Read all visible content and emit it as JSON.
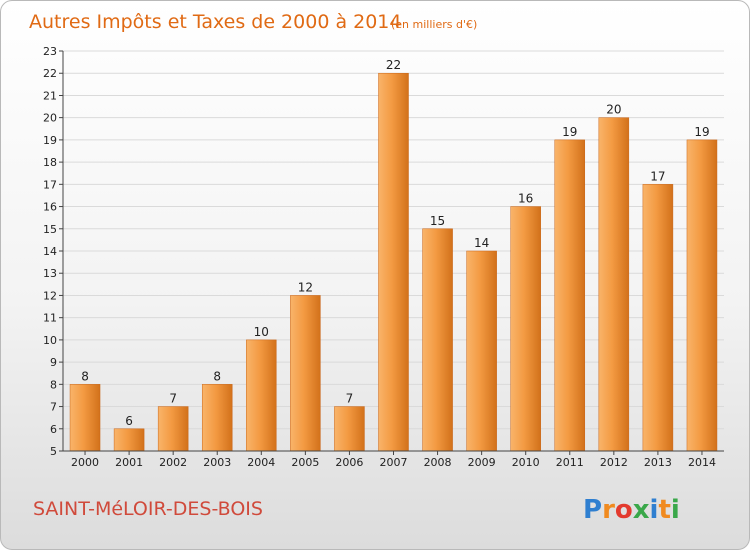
{
  "chart_data": {
    "type": "bar",
    "title": "Autres Impôts et Taxes de 2000 à 2014",
    "subtitle": "(en milliers d'€)",
    "categories": [
      "2000",
      "2001",
      "2002",
      "2003",
      "2004",
      "2005",
      "2006",
      "2007",
      "2008",
      "2009",
      "2010",
      "2011",
      "2012",
      "2013",
      "2014"
    ],
    "values": [
      8,
      6,
      7,
      8,
      10,
      12,
      7,
      22,
      15,
      14,
      16,
      19,
      20,
      17,
      19
    ],
    "ylim": [
      5,
      23
    ],
    "yticks": [
      5,
      6,
      7,
      8,
      9,
      10,
      11,
      12,
      13,
      14,
      15,
      16,
      17,
      18,
      19,
      20,
      21,
      22,
      23
    ],
    "grid": true,
    "xlabel": "",
    "ylabel": "",
    "colors": {
      "bar_light": "#f7a550",
      "bar_dark": "#cf6b12",
      "title": "#e06a14",
      "commune": "#d04a3b"
    }
  },
  "footer": {
    "commune": "SAINT-MéLOIR-DES-BOIS",
    "logo_letters": [
      "P",
      "r",
      "o",
      "x",
      "i",
      "t",
      "i"
    ],
    "logo_colors": [
      "#2f7fd0",
      "#f08a1f",
      "#e33a2e",
      "#3aa84a",
      "#2f7fd0",
      "#f08a1f",
      "#3aa84a"
    ]
  }
}
